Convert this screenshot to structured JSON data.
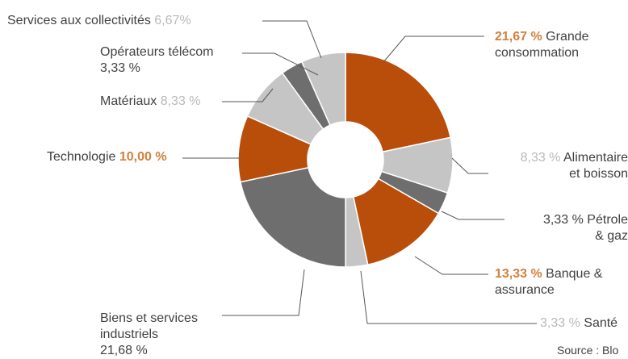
{
  "chart_data": {
    "type": "pie",
    "donut": true,
    "slices": [
      {
        "name_lines": [
          "Grande",
          "consommation"
        ],
        "value_text": "21,67 %",
        "value": 21.67,
        "color": "#b94e0b"
      },
      {
        "name_lines": [
          "Alimentaire",
          "et boisson"
        ],
        "value_text": "8,33 %",
        "value": 8.33,
        "color": "#c5c5c5"
      },
      {
        "name_lines": [
          "Pétrole",
          "& gaz"
        ],
        "value_text": "3,33 %",
        "value": 3.33,
        "color": "#6e6e6e"
      },
      {
        "name_lines": [
          "Banque &",
          "assurance"
        ],
        "value_text": "13,33 %",
        "value": 13.33,
        "color": "#b94e0b"
      },
      {
        "name_lines": [
          "Santé"
        ],
        "value_text": "3,33 %",
        "value": 3.33,
        "color": "#c5c5c5"
      },
      {
        "name_lines": [
          "Biens et services",
          "industriels"
        ],
        "value_text": "21,68 %",
        "value": 21.68,
        "color": "#6e6e6e"
      },
      {
        "name_lines": [
          "Technologie"
        ],
        "value_text": "10,00 %",
        "value": 10.0,
        "color": "#b94e0b"
      },
      {
        "name_lines": [
          "Matériaux"
        ],
        "value_text": "8,33 %",
        "value": 8.33,
        "color": "#c5c5c5"
      },
      {
        "name_lines": [
          "Opérateurs télécom"
        ],
        "value_text": "3,33 %",
        "value": 3.33,
        "color": "#6e6e6e"
      },
      {
        "name_lines": [
          "Services aux collectivités"
        ],
        "value_text": "6,67%",
        "value": 6.67,
        "color": "#c5c5c5"
      }
    ],
    "source": "Source : Blo"
  }
}
